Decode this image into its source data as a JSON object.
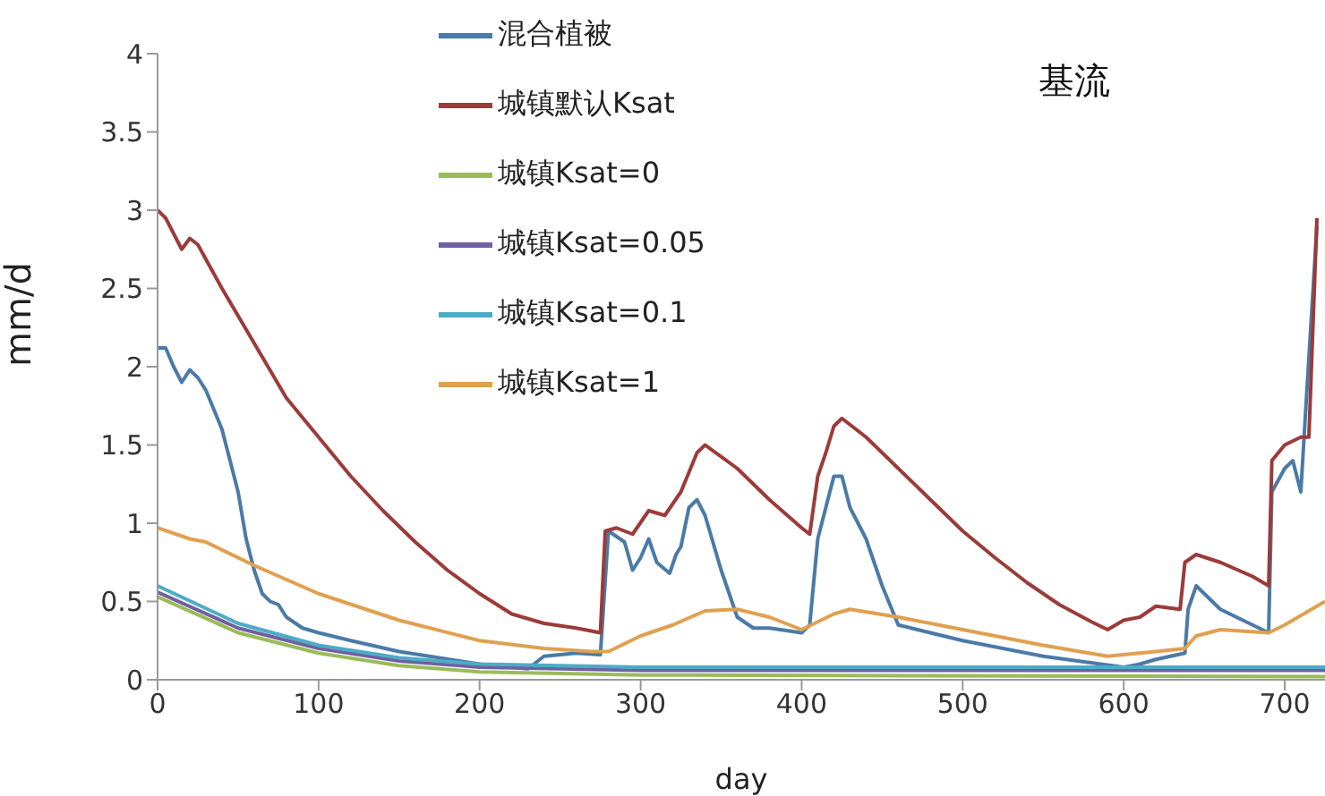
{
  "chart_data": {
    "type": "line",
    "title": "基流",
    "xlabel": "day",
    "ylabel": "mm/d",
    "xlim": [
      0,
      725
    ],
    "xticks": [
      0,
      100,
      200,
      300,
      400,
      500,
      600,
      700
    ],
    "ylim": [
      0,
      4
    ],
    "yticks": [
      0,
      0.5,
      1,
      1.5,
      2,
      2.5,
      3,
      3.5,
      4
    ],
    "grid": false,
    "legend": "top left",
    "marker": "none",
    "line_style": "solid",
    "series": [
      {
        "name": "混合植被",
        "color": "#4a7aa7",
        "x": [
          0,
          5,
          10,
          15,
          20,
          25,
          30,
          40,
          50,
          55,
          60,
          65,
          70,
          75,
          80,
          90,
          100,
          120,
          150,
          200,
          230,
          240,
          260,
          275,
          280,
          290,
          295,
          300,
          305,
          310,
          318,
          322,
          325,
          330,
          335,
          340,
          350,
          360,
          370,
          380,
          400,
          405,
          410,
          415,
          420,
          425,
          430,
          440,
          450,
          460,
          500,
          550,
          600,
          610,
          620,
          638,
          640,
          645,
          660,
          680,
          690,
          692,
          700,
          705,
          710,
          712,
          720
        ],
        "values": [
          2.12,
          2.12,
          2.0,
          1.9,
          1.98,
          1.93,
          1.85,
          1.6,
          1.2,
          0.9,
          0.7,
          0.55,
          0.5,
          0.48,
          0.4,
          0.33,
          0.3,
          0.25,
          0.18,
          0.1,
          0.07,
          0.15,
          0.17,
          0.16,
          0.95,
          0.88,
          0.7,
          0.78,
          0.9,
          0.75,
          0.68,
          0.8,
          0.85,
          1.1,
          1.15,
          1.05,
          0.7,
          0.4,
          0.33,
          0.33,
          0.3,
          0.35,
          0.9,
          1.1,
          1.3,
          1.3,
          1.1,
          0.9,
          0.6,
          0.35,
          0.25,
          0.15,
          0.08,
          0.1,
          0.13,
          0.17,
          0.45,
          0.6,
          0.45,
          0.35,
          0.3,
          1.2,
          1.35,
          1.4,
          1.2,
          1.55,
          2.9
        ]
      },
      {
        "name": "城镇默认Ksat",
        "color": "#9b3b3a",
        "x": [
          0,
          5,
          10,
          15,
          20,
          25,
          40,
          60,
          80,
          100,
          120,
          140,
          160,
          180,
          200,
          220,
          240,
          260,
          275,
          278,
          285,
          295,
          305,
          315,
          325,
          335,
          340,
          360,
          380,
          400,
          405,
          410,
          415,
          420,
          425,
          440,
          460,
          480,
          500,
          520,
          540,
          560,
          580,
          590,
          600,
          610,
          620,
          635,
          638,
          645,
          660,
          680,
          690,
          692,
          700,
          710,
          715,
          720
        ],
        "values": [
          3.0,
          2.95,
          2.85,
          2.75,
          2.82,
          2.78,
          2.5,
          2.15,
          1.8,
          1.55,
          1.3,
          1.08,
          0.88,
          0.7,
          0.55,
          0.42,
          0.36,
          0.33,
          0.3,
          0.95,
          0.97,
          0.93,
          1.08,
          1.05,
          1.2,
          1.45,
          1.5,
          1.35,
          1.15,
          0.97,
          0.93,
          1.3,
          1.45,
          1.62,
          1.67,
          1.55,
          1.35,
          1.15,
          0.95,
          0.78,
          0.62,
          0.48,
          0.37,
          0.32,
          0.38,
          0.4,
          0.47,
          0.45,
          0.75,
          0.8,
          0.75,
          0.66,
          0.6,
          1.4,
          1.5,
          1.55,
          1.55,
          2.95
        ]
      },
      {
        "name": "城镇Ksat=0",
        "color": "#9bbb59",
        "x": [
          0,
          50,
          100,
          150,
          200,
          300,
          725
        ],
        "values": [
          0.53,
          0.3,
          0.17,
          0.09,
          0.05,
          0.03,
          0.02
        ]
      },
      {
        "name": "城镇Ksat=0.05",
        "color": "#7060a0",
        "x": [
          0,
          50,
          100,
          150,
          200,
          300,
          725
        ],
        "values": [
          0.56,
          0.33,
          0.2,
          0.12,
          0.08,
          0.06,
          0.06
        ]
      },
      {
        "name": "城镇Ksat=0.1",
        "color": "#4bacc6",
        "x": [
          0,
          50,
          100,
          150,
          200,
          300,
          725
        ],
        "values": [
          0.6,
          0.36,
          0.22,
          0.14,
          0.1,
          0.08,
          0.08
        ]
      },
      {
        "name": "城镇Ksat=1",
        "color": "#e0a050",
        "x": [
          0,
          20,
          30,
          60,
          100,
          150,
          200,
          240,
          270,
          280,
          300,
          320,
          340,
          360,
          380,
          400,
          420,
          430,
          460,
          500,
          550,
          590,
          620,
          638,
          645,
          660,
          690,
          700,
          725
        ],
        "values": [
          0.97,
          0.9,
          0.88,
          0.73,
          0.55,
          0.38,
          0.25,
          0.2,
          0.18,
          0.18,
          0.28,
          0.35,
          0.44,
          0.45,
          0.4,
          0.32,
          0.42,
          0.45,
          0.4,
          0.32,
          0.22,
          0.15,
          0.18,
          0.2,
          0.28,
          0.32,
          0.3,
          0.35,
          0.5
        ]
      }
    ]
  }
}
